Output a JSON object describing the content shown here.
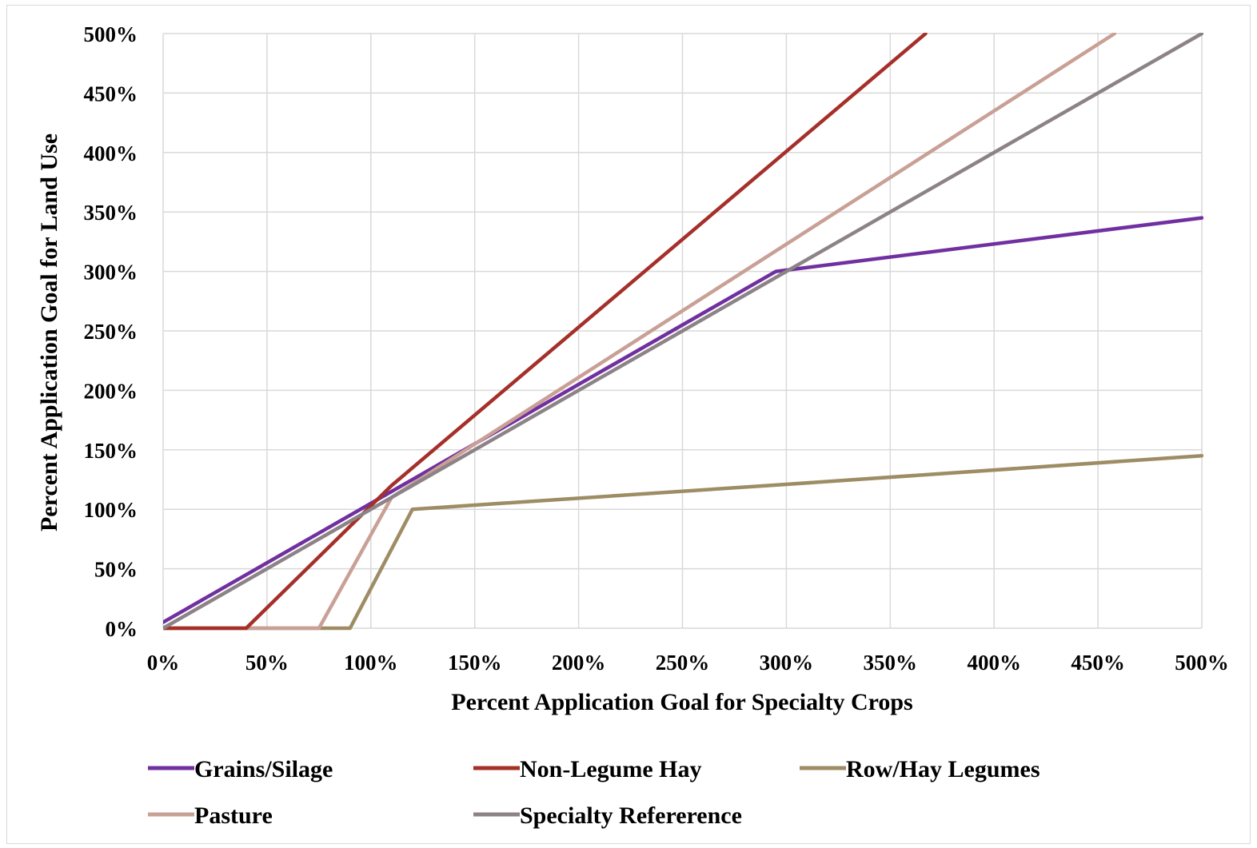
{
  "chart_data": {
    "type": "line",
    "xlabel": "Percent Application Goal for Specialty Crops",
    "ylabel": "Percent Application Goal for Land Use",
    "xlim": [
      0,
      500
    ],
    "ylim": [
      0,
      500
    ],
    "x_ticks": [
      0,
      50,
      100,
      150,
      200,
      250,
      300,
      350,
      400,
      450,
      500
    ],
    "y_ticks": [
      0,
      50,
      100,
      150,
      200,
      250,
      300,
      350,
      400,
      450,
      500
    ],
    "x_tick_labels": [
      "0%",
      "50%",
      "100%",
      "150%",
      "200%",
      "250%",
      "300%",
      "350%",
      "400%",
      "450%",
      "500%"
    ],
    "y_tick_labels": [
      "0%",
      "50%",
      "100%",
      "150%",
      "200%",
      "250%",
      "300%",
      "350%",
      "400%",
      "450%",
      "500%"
    ],
    "grid": true,
    "legend_position": "bottom",
    "series": [
      {
        "name": "Grains/Silage",
        "color": "#7030a0",
        "points": [
          [
            0,
            5
          ],
          [
            295,
            300
          ],
          [
            500,
            345
          ]
        ]
      },
      {
        "name": "Non-Legume Hay",
        "color": "#a5302a",
        "points": [
          [
            0,
            0
          ],
          [
            40,
            0
          ],
          [
            110,
            120
          ],
          [
            367,
            500
          ]
        ]
      },
      {
        "name": "Row/Hay Legumes",
        "color": "#9e8c64",
        "points": [
          [
            0,
            0
          ],
          [
            90,
            0
          ],
          [
            120,
            100
          ],
          [
            300,
            121
          ],
          [
            500,
            145
          ]
        ]
      },
      {
        "name": "Pasture",
        "color": "#c9a096",
        "points": [
          [
            0,
            0
          ],
          [
            75,
            0
          ],
          [
            110,
            110
          ],
          [
            458,
            500
          ]
        ]
      },
      {
        "name": "Specialty Refererence",
        "color": "#8c8387",
        "points": [
          [
            0,
            0
          ],
          [
            500,
            500
          ]
        ]
      }
    ]
  }
}
